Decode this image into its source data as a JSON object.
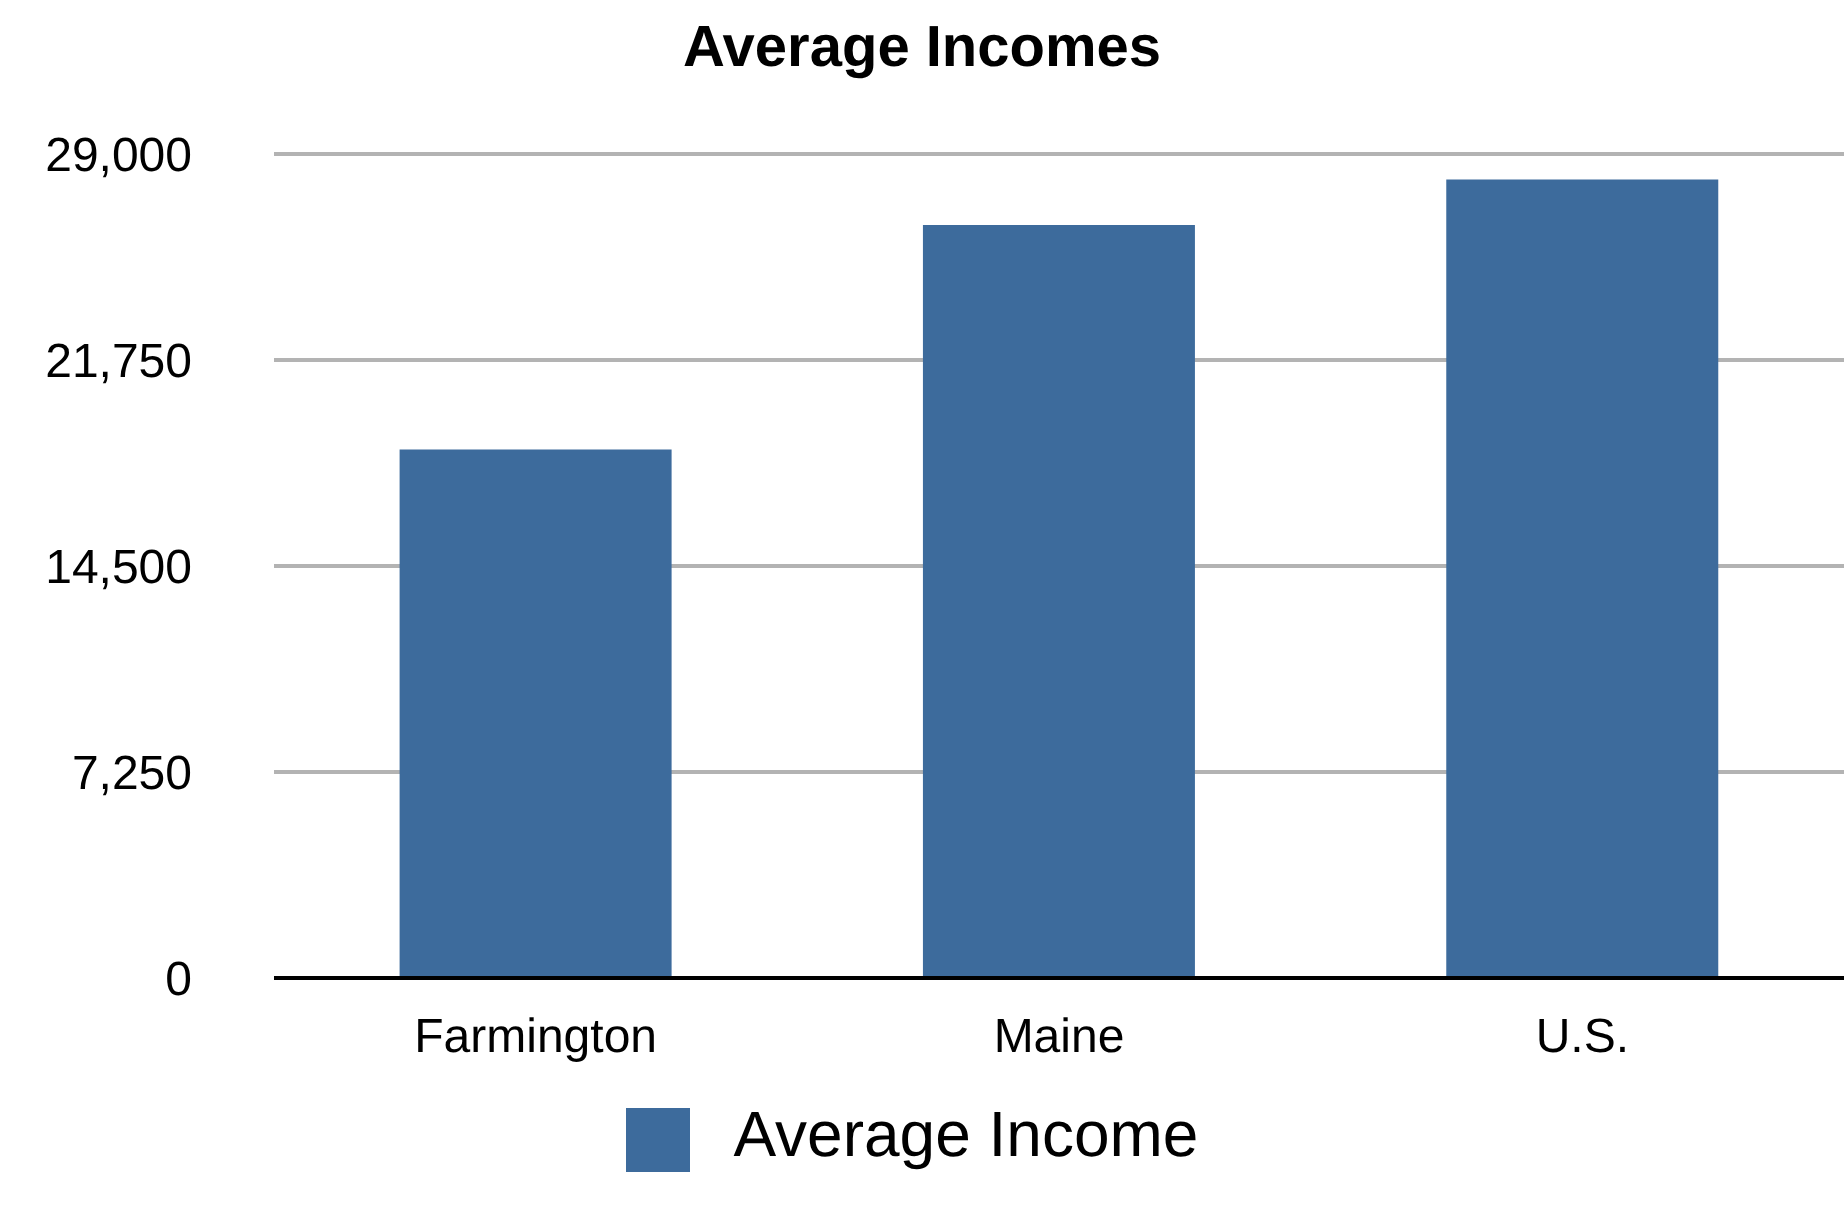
{
  "chart_data": {
    "type": "bar",
    "title": "Average Incomes",
    "categories": [
      "Farmington",
      "Maine",
      "U.S."
    ],
    "series": [
      {
        "name": "Average Income",
        "color": "#3d6b9c",
        "values": [
          18600,
          26500,
          28100
        ]
      }
    ],
    "ylim": [
      0,
      29000
    ],
    "yticks": [
      {
        "value": 0,
        "label": "0"
      },
      {
        "value": 7250,
        "label": "7,250"
      },
      {
        "value": 14500,
        "label": "14,500"
      },
      {
        "value": 21750,
        "label": "21,750"
      },
      {
        "value": 29000,
        "label": "29,000"
      }
    ],
    "grid": "y",
    "legend": "bottom"
  }
}
